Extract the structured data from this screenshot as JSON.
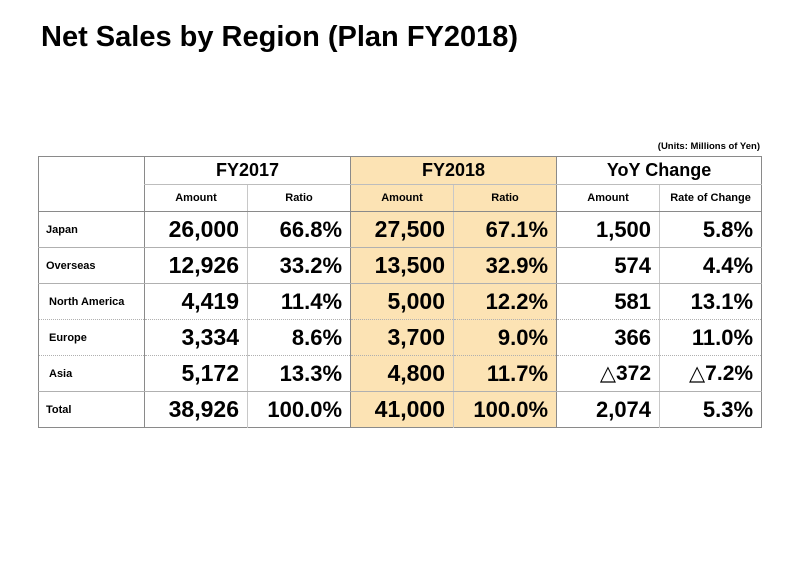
{
  "title": "Net Sales by Region (Plan FY2018)",
  "units": "(Units: Millions of Yen)",
  "chart_data": {
    "type": "table",
    "title": "Net Sales by Region (Plan FY2018)",
    "units": "(Units: Millions of Yen)",
    "column_groups": [
      "FY2017",
      "FY2018",
      "YoY Change"
    ],
    "columns": [
      "Amount",
      "Ratio",
      "Amount",
      "Ratio",
      "Amount",
      "Rate of Change"
    ],
    "highlight_group": "FY2018",
    "highlight_color": "#fce3b4",
    "rows": [
      {
        "label": "Japan",
        "cells": [
          "26,000",
          "66.8%",
          "27,500",
          "67.1%",
          "1,500",
          "5.8%"
        ]
      },
      {
        "label": "Overseas",
        "cells": [
          "12,926",
          "33.2%",
          "13,500",
          "32.9%",
          "574",
          "4.4%"
        ]
      },
      {
        "label": "North America",
        "cells": [
          "4,419",
          "11.4%",
          "5,000",
          "12.2%",
          "581",
          "13.1%"
        ]
      },
      {
        "label": "Europe",
        "cells": [
          "3,334",
          "8.6%",
          "3,700",
          "9.0%",
          "366",
          "11.0%"
        ]
      },
      {
        "label": "Asia",
        "cells": [
          "5,172",
          "13.3%",
          "4,800",
          "11.7%",
          "△372",
          "△7.2%"
        ]
      },
      {
        "label": "Total",
        "cells": [
          "38,926",
          "100.0%",
          "41,000",
          "100.0%",
          "2,074",
          "5.3%"
        ]
      }
    ]
  }
}
